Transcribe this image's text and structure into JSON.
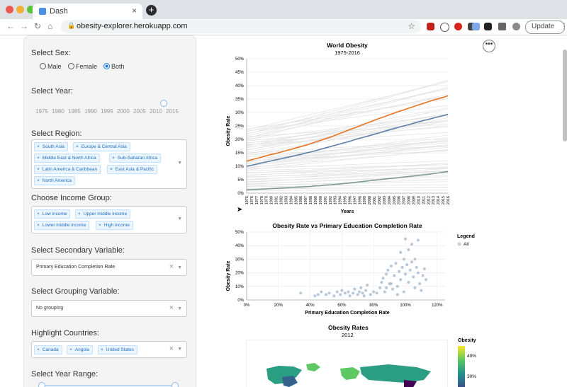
{
  "browser": {
    "tab_title": "Dash",
    "tab_close": "×",
    "new_tab": "+",
    "url": "obesity-explorer.herokuapp.com",
    "update_label": "Update"
  },
  "sidebar": {
    "sex": {
      "label": "Select Sex:",
      "options": [
        "Male",
        "Female",
        "Both"
      ],
      "selected": "Both"
    },
    "year": {
      "label": "Select Year:",
      "ticks": [
        "1975",
        "1980",
        "1985",
        "1990",
        "1995",
        "2000",
        "2005",
        "2010",
        "2015"
      ],
      "value": 2012
    },
    "region": {
      "label": "Select Region:",
      "chips": [
        "South Asia",
        "Europe & Central Asia",
        "Middle East & North Africa",
        "Sub-Saharan Africa",
        "Latin America & Caribbean",
        "East Asia & Pacific",
        "North America"
      ]
    },
    "income": {
      "label": "Choose Income Group:",
      "chips": [
        "Low income",
        "Upper middle income",
        "Lower middle income",
        "High income"
      ]
    },
    "secondary": {
      "label": "Select Secondary Variable:",
      "value": "Primary Education Completion Rate"
    },
    "grouping": {
      "label": "Select Grouping Variable:",
      "value": "No grouping"
    },
    "highlight": {
      "label": "Highlight Countries:",
      "chips": [
        "Canada",
        "Angola",
        "United States"
      ]
    },
    "year_range": {
      "label": "Select Year Range:"
    }
  },
  "line_chart": {
    "chart_data": {
      "type": "line",
      "title": "World Obesity",
      "subtitle": "1975-2016",
      "xlabel": "Years",
      "ylabel": "Obesity Rate",
      "x": [
        "1975",
        "1976",
        "1977",
        "1978",
        "1979",
        "1980",
        "1981",
        "1982",
        "1983",
        "1984",
        "1985",
        "1986",
        "1987",
        "1988",
        "1989",
        "1990",
        "1991",
        "1992",
        "1993",
        "1994",
        "1995",
        "1996",
        "1997",
        "1998",
        "1999",
        "2000",
        "2001",
        "2002",
        "2003",
        "2004",
        "2005",
        "2006",
        "2007",
        "2008",
        "2009",
        "2010",
        "2011",
        "2012",
        "2013",
        "2014",
        "2015",
        "2016"
      ],
      "yticks": [
        "0%",
        "5%",
        "10%",
        "15%",
        "20%",
        "25%",
        "30%",
        "35%",
        "40%",
        "45%",
        "50%"
      ],
      "ylim": [
        0,
        50
      ],
      "series": [
        {
          "color": "#e8731f",
          "values": [
            11.9,
            12.4,
            12.9,
            13.4,
            13.9,
            14.4,
            14.8,
            15.3,
            15.8,
            16.3,
            16.8,
            17.3,
            17.8,
            18.4,
            19.0,
            19.6,
            20.2,
            20.8,
            21.5,
            22.2,
            22.9,
            23.6,
            24.3,
            25.0,
            25.7,
            26.4,
            27.1,
            27.8,
            28.4,
            29.1,
            29.7,
            30.4,
            31.0,
            31.6,
            32.2,
            32.8,
            33.4,
            34.0,
            34.6,
            35.1,
            35.6,
            36.2
          ]
        },
        {
          "color": "#5b7fa8",
          "values": [
            10.0,
            10.4,
            10.8,
            11.2,
            11.6,
            12.0,
            12.4,
            12.8,
            13.2,
            13.6,
            14.0,
            14.4,
            14.9,
            15.3,
            15.8,
            16.3,
            16.8,
            17.3,
            17.8,
            18.3,
            18.8,
            19.3,
            19.9,
            20.4,
            20.9,
            21.4,
            21.9,
            22.4,
            23.0,
            23.5,
            24.0,
            24.5,
            25.0,
            25.5,
            26.0,
            26.5,
            27.0,
            27.4,
            27.9,
            28.4,
            28.8,
            29.3
          ]
        },
        {
          "color": "#7c9a8f",
          "values": [
            1.2,
            1.3,
            1.4,
            1.5,
            1.6,
            1.7,
            1.8,
            1.9,
            2.0,
            2.1,
            2.2,
            2.3,
            2.4,
            2.5,
            2.7,
            2.8,
            3.0,
            3.1,
            3.3,
            3.4,
            3.6,
            3.8,
            4.0,
            4.2,
            4.4,
            4.6,
            4.8,
            5.0,
            5.2,
            5.4,
            5.6,
            5.8,
            6.0,
            6.2,
            6.4,
            6.6,
            6.8,
            7.0,
            7.3,
            7.5,
            7.8,
            8.0
          ]
        }
      ]
    }
  },
  "scatter_chart": {
    "chart_data": {
      "type": "scatter",
      "title": "Obesity Rate vs Primary Education Completion Rate",
      "xlabel": "Primary Education Completion Rate",
      "ylabel": "Obesity Rate",
      "xticks": [
        "0%",
        "20%",
        "40%",
        "60%",
        "80%",
        "100%",
        "120%"
      ],
      "yticks": [
        "0%",
        "10%",
        "20%",
        "30%",
        "40%",
        "50%"
      ],
      "xlim": [
        0,
        125
      ],
      "ylim": [
        0,
        50
      ],
      "legend_title": "Legend",
      "legend_items": [
        "All"
      ],
      "points": [
        [
          34,
          5
        ],
        [
          43,
          3
        ],
        [
          45,
          4
        ],
        [
          47,
          6
        ],
        [
          50,
          4
        ],
        [
          52,
          5
        ],
        [
          55,
          3
        ],
        [
          57,
          6
        ],
        [
          59,
          4
        ],
        [
          60,
          7
        ],
        [
          62,
          5
        ],
        [
          64,
          6
        ],
        [
          65,
          3
        ],
        [
          67,
          5
        ],
        [
          68,
          8
        ],
        [
          70,
          4
        ],
        [
          71,
          6
        ],
        [
          72,
          9
        ],
        [
          73,
          5
        ],
        [
          74,
          3
        ],
        [
          75,
          7
        ],
        [
          76,
          11
        ],
        [
          78,
          4
        ],
        [
          80,
          6
        ],
        [
          82,
          5
        ],
        [
          84,
          9
        ],
        [
          85,
          13
        ],
        [
          86,
          16
        ],
        [
          87,
          6
        ],
        [
          88,
          19
        ],
        [
          89,
          22
        ],
        [
          90,
          12
        ],
        [
          91,
          25
        ],
        [
          92,
          8
        ],
        [
          93,
          18
        ],
        [
          94,
          27
        ],
        [
          95,
          10
        ],
        [
          96,
          21
        ],
        [
          97,
          15
        ],
        [
          98,
          24
        ],
        [
          99,
          30
        ],
        [
          100,
          19
        ],
        [
          101,
          26
        ],
        [
          102,
          13
        ],
        [
          103,
          22
        ],
        [
          104,
          28
        ],
        [
          105,
          17
        ],
        [
          106,
          9
        ],
        [
          107,
          24
        ],
        [
          108,
          20
        ],
        [
          109,
          12
        ],
        [
          110,
          7
        ],
        [
          111,
          18
        ],
        [
          112,
          23
        ],
        [
          113,
          15
        ],
        [
          100,
          45
        ],
        [
          104,
          41
        ],
        [
          108,
          44
        ],
        [
          97,
          35
        ],
        [
          102,
          37
        ],
        [
          99,
          6
        ],
        [
          95,
          4
        ],
        [
          91,
          12
        ],
        [
          88,
          9
        ],
        [
          106,
          30
        ]
      ]
    }
  },
  "map_chart": {
    "title": "Obesity Rates",
    "subtitle": "2012",
    "legend_title": "Obesity",
    "legend_ticks": [
      "40%",
      "30%"
    ],
    "colors": [
      "#fde725",
      "#5ec962",
      "#21918c",
      "#3b528b",
      "#440154"
    ]
  },
  "colors": {
    "accent": "#1a73e8",
    "chip_bg": "#ebf5ff",
    "chip_text": "#1f6fc0"
  }
}
